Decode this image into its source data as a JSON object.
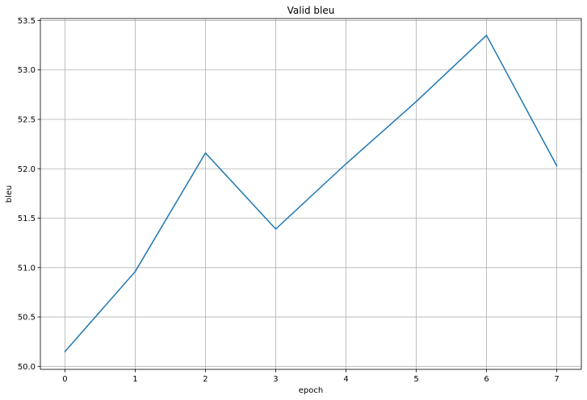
{
  "chart_data": {
    "type": "line",
    "title": "Valid bleu",
    "xlabel": "epoch",
    "ylabel": "bleu",
    "xlim": [
      -0.35,
      7.35
    ],
    "ylim": [
      49.97,
      53.52
    ],
    "xticks": [
      0,
      1,
      2,
      3,
      4,
      5,
      6,
      7
    ],
    "yticks": [
      50.0,
      50.5,
      51.0,
      51.5,
      52.0,
      52.5,
      53.0,
      53.5
    ],
    "ytick_labels": [
      "50.0",
      "50.5",
      "51.0",
      "51.5",
      "52.0",
      "52.5",
      "53.0",
      "53.5"
    ],
    "grid": true,
    "series": [
      {
        "color": "#1f77b4",
        "x": [
          0,
          1,
          2,
          3,
          4,
          5,
          6,
          7
        ],
        "values": [
          50.15,
          50.96,
          52.16,
          51.39,
          52.05,
          52.68,
          53.35,
          52.03
        ]
      }
    ]
  }
}
